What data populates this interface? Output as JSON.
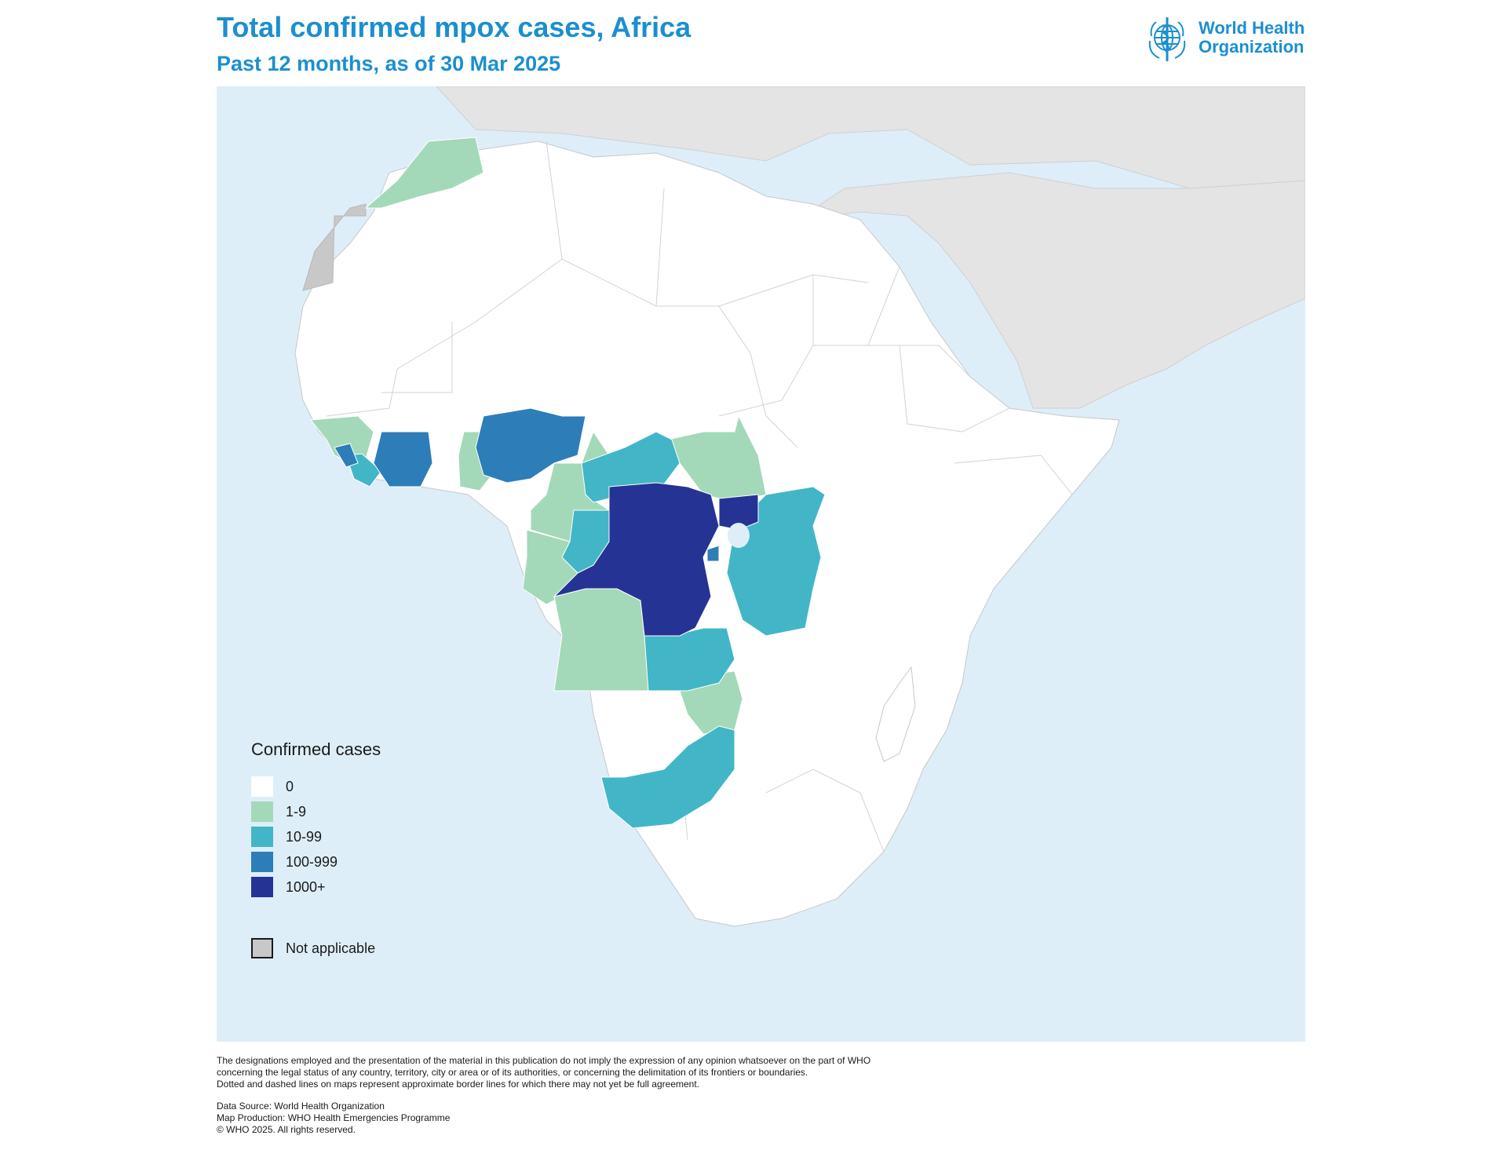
{
  "header": {
    "title": "Total confirmed mpox cases, Africa",
    "subtitle": "Past 12 months, as of 30 Mar 2025"
  },
  "logo": {
    "line1": "World Health",
    "line2": "Organization",
    "icon": "who-emblem-icon"
  },
  "colors": {
    "ocean": "#ddeef8",
    "not_applicable": "#c8c8c8",
    "outside_region": "#e4e4e4",
    "zero": "#ffffff",
    "c1_9": "#a3d9b8",
    "c10_99": "#42b6c6",
    "c100_999": "#2d7db8",
    "c1000_plus": "#253494",
    "border": "#c8c8c8"
  },
  "legend": {
    "title": "Confirmed cases",
    "classes": [
      {
        "label": "0",
        "color": "#ffffff"
      },
      {
        "label": "1-9",
        "color": "#a3d9b8"
      },
      {
        "label": "10-99",
        "color": "#42b6c6"
      },
      {
        "label": "100-999",
        "color": "#2d7db8"
      },
      {
        "label": "1000+",
        "color": "#253494"
      }
    ],
    "not_applicable": {
      "label": "Not applicable",
      "color": "#c8c8c8"
    }
  },
  "footer": {
    "disclaimer": [
      "The designations employed and the presentation of the material in this publication do not imply the expression of any opinion whatsoever on the part of WHO",
      "concerning the legal status of any country, territory, city or area or of its authorities, or concerning the delimitation of its frontiers or boundaries.",
      "Dotted and dashed lines on maps represent approximate border lines for which there may not yet be full agreement."
    ],
    "source": "Data Source: World Health Organization",
    "production": "Map Production: WHO Health Emergencies Programme",
    "copyright": "© WHO 2025. All rights reserved."
  }
}
